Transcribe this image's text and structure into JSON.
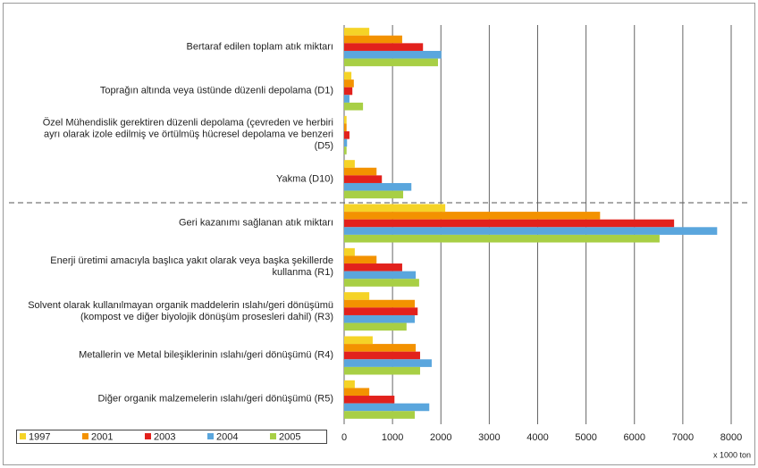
{
  "chart_data": {
    "type": "bar",
    "orientation": "horizontal",
    "x_unit": "x 1000 ton",
    "categories": [
      "Bertaraf edilen toplam atık miktarı",
      "Toprağın altında veya üstünde düzenli depolama (D1)",
      "Özel Mühendislik gerektiren düzenli depolama (çevreden ve herbiri\nayrı olarak izole edilmiş ve örtülmüş hücresel depolama ve benzeri\n(D5)",
      "Yakma (D10)",
      "Geri kazanımı sağlanan atık miktarı",
      "Enerji üretimi amacıyla başlıca yakıt olarak veya başka şekillerde\nkullanma (R1)",
      "Solvent olarak kullanılmayan organik maddelerin ıslahı/geri dönüşümü\n(kompost ve diğer biyolojik dönüşüm prosesleri dahil) (R3)",
      "Metallerin ve Metal bileşiklerinin ıslahı/geri dönüşümü (R4)",
      "Diğer organik malzemelerin ıslahı/geri dönüşümü (R5)"
    ],
    "series": [
      {
        "name": "1997",
        "color": "#f5d327",
        "values": [
          520,
          150,
          50,
          220,
          2090,
          220,
          520,
          590,
          220
        ]
      },
      {
        "name": "2001",
        "color": "#f39200",
        "values": [
          1200,
          200,
          50,
          670,
          5290,
          670,
          1460,
          1480,
          520
        ]
      },
      {
        "name": "2003",
        "color": "#e2211c",
        "values": [
          1630,
          170,
          110,
          780,
          6820,
          1200,
          1520,
          1570,
          1040
        ]
      },
      {
        "name": "2004",
        "color": "#5aa6dd",
        "values": [
          2010,
          110,
          60,
          1390,
          7710,
          1480,
          1460,
          1810,
          1760
        ]
      },
      {
        "name": "2005",
        "color": "#a8cf45",
        "values": [
          1940,
          390,
          50,
          1220,
          6520,
          1550,
          1290,
          1570,
          1460
        ]
      }
    ],
    "xlim": [
      0,
      8000
    ],
    "xticks": [
      0,
      1000,
      2000,
      3000,
      4000,
      5000,
      6000,
      7000,
      8000
    ],
    "grid": true
  }
}
